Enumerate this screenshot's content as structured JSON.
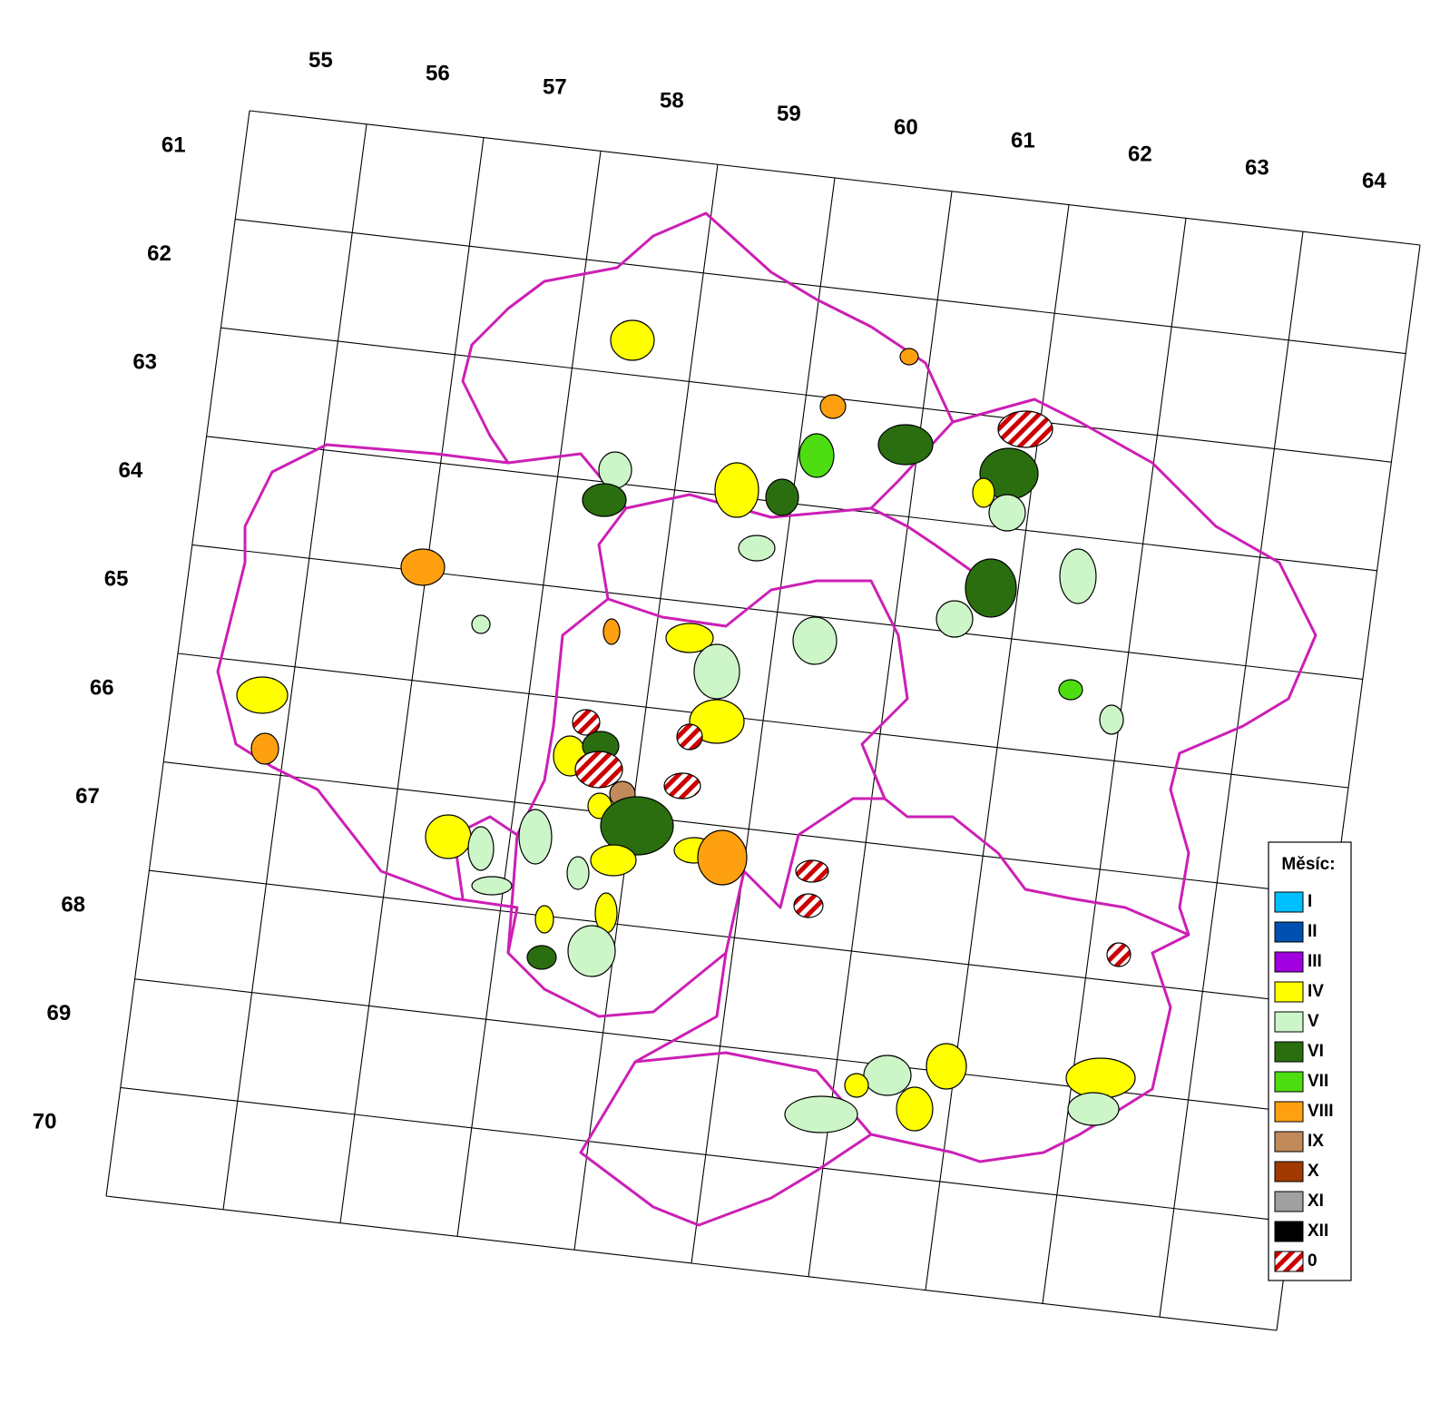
{
  "map": {
    "column_labels": [
      "55",
      "56",
      "57",
      "58",
      "59",
      "60",
      "61",
      "62",
      "63",
      "64"
    ],
    "row_labels": [
      "61",
      "62",
      "63",
      "64",
      "65",
      "66",
      "67",
      "68",
      "69",
      "70"
    ],
    "legend": {
      "title": "Měsíc:",
      "items": [
        {
          "label": "I",
          "color": "#00bfff"
        },
        {
          "label": "II",
          "color": "#0050b0"
        },
        {
          "label": "III",
          "color": "#a000e0"
        },
        {
          "label": "IV",
          "color": "#ffff00"
        },
        {
          "label": "V",
          "color": "#ccf5c8"
        },
        {
          "label": "VI",
          "color": "#2a6e10"
        },
        {
          "label": "VII",
          "color": "#4ddd10"
        },
        {
          "label": "VIII",
          "color": "#ffa010"
        },
        {
          "label": "IX",
          "color": "#c08a5a"
        },
        {
          "label": "X",
          "color": "#a03a00"
        },
        {
          "label": "XI",
          "color": "#a0a0a0"
        },
        {
          "label": "XII",
          "color": "#000000"
        },
        {
          "label": "0",
          "color": "#cc0000",
          "hatched": true
        }
      ]
    }
  }
}
